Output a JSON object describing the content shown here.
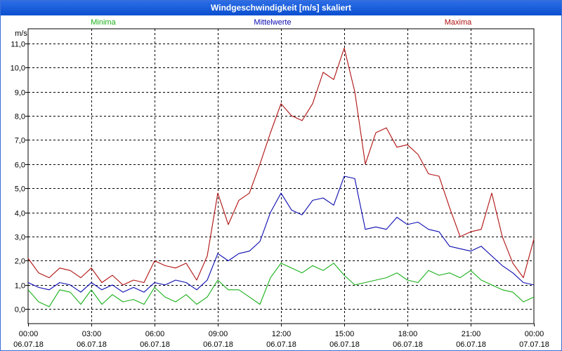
{
  "window": {
    "title": "Windgeschwindigkeit [m/s] skaliert"
  },
  "chart_data": {
    "type": "line",
    "title": "Windgeschwindigkeit [m/s] skaliert",
    "ylabel": "m/s",
    "xlabel": "",
    "ylim": [
      -0.6,
      11.6
    ],
    "xlim": [
      0,
      24
    ],
    "yticks": [
      0,
      1,
      2,
      3,
      4,
      5,
      6,
      7,
      8,
      9,
      10,
      11
    ],
    "ytick_labels": [
      "0,0",
      "1,0",
      "2,0",
      "3,0",
      "4,0",
      "5,0",
      "6,0",
      "7,0",
      "8,0",
      "9,0",
      "10,0",
      "11,0"
    ],
    "xticks": [
      {
        "value": 0,
        "time": "00:00",
        "date": "06.07.18"
      },
      {
        "value": 3,
        "time": "03:00",
        "date": "06.07.18"
      },
      {
        "value": 6,
        "time": "06:00",
        "date": "06.07.18"
      },
      {
        "value": 9,
        "time": "09:00",
        "date": "06.07.18"
      },
      {
        "value": 12,
        "time": "12:00",
        "date": "06.07.18"
      },
      {
        "value": 15,
        "time": "15:00",
        "date": "06.07.18"
      },
      {
        "value": 18,
        "time": "18:00",
        "date": "06.07.18"
      },
      {
        "value": 21,
        "time": "21:00",
        "date": "06.07.18"
      },
      {
        "value": 24,
        "time": "00:00",
        "date": "07.07.18"
      }
    ],
    "grid": true,
    "series": [
      {
        "name": "Minima",
        "color": "#18b018",
        "x": [
          0,
          0.5,
          1,
          1.5,
          2,
          2.5,
          3,
          3.5,
          4,
          4.5,
          5,
          5.5,
          6,
          6.5,
          7,
          7.5,
          8,
          8.5,
          9,
          9.5,
          10,
          10.5,
          11,
          11.5,
          12,
          12.5,
          13,
          13.5,
          14,
          14.5,
          15,
          15.5,
          16,
          16.5,
          17,
          17.5,
          18,
          18.5,
          19,
          19.5,
          20,
          20.5,
          21,
          21.5,
          22,
          22.5,
          23,
          23.5,
          24
        ],
        "values": [
          0.8,
          0.3,
          0.1,
          0.8,
          0.7,
          0.2,
          0.8,
          0.2,
          0.6,
          0.3,
          0.4,
          0.2,
          0.9,
          0.5,
          0.3,
          0.6,
          0.2,
          0.5,
          1.2,
          0.8,
          0.8,
          0.5,
          0.2,
          1.3,
          1.9,
          1.7,
          1.5,
          1.8,
          1.6,
          1.9,
          1.4,
          1.0,
          1.1,
          1.2,
          1.3,
          1.5,
          1.2,
          1.1,
          1.6,
          1.4,
          1.5,
          1.3,
          1.6,
          1.2,
          1.0,
          0.8,
          0.7,
          0.3,
          0.5
        ]
      },
      {
        "name": "Mittelwerte",
        "color": "#0a0ab0",
        "x": [
          0,
          0.5,
          1,
          1.5,
          2,
          2.5,
          3,
          3.5,
          4,
          4.5,
          5,
          5.5,
          6,
          6.5,
          7,
          7.5,
          8,
          8.5,
          9,
          9.5,
          10,
          10.5,
          11,
          11.5,
          12,
          12.5,
          13,
          13.5,
          14,
          14.5,
          15,
          15.5,
          16,
          16.5,
          17,
          17.5,
          18,
          18.5,
          19,
          19.5,
          20,
          20.5,
          21,
          21.5,
          22,
          22.5,
          23,
          23.5,
          24
        ],
        "values": [
          1.1,
          0.9,
          0.8,
          1.1,
          1.0,
          0.7,
          1.1,
          0.8,
          1.0,
          0.7,
          0.9,
          0.7,
          1.1,
          1.0,
          1.2,
          1.1,
          0.8,
          1.2,
          2.3,
          2.0,
          2.3,
          2.4,
          2.8,
          4.0,
          4.8,
          4.1,
          3.9,
          4.5,
          4.6,
          4.3,
          5.5,
          5.4,
          3.3,
          3.4,
          3.3,
          3.8,
          3.5,
          3.6,
          3.3,
          3.2,
          2.6,
          2.5,
          2.4,
          2.6,
          2.2,
          1.8,
          1.5,
          1.1,
          1.0
        ]
      },
      {
        "name": "Maxima",
        "color": "#b01010",
        "x": [
          0,
          0.5,
          1,
          1.5,
          2,
          2.5,
          3,
          3.5,
          4,
          4.5,
          5,
          5.5,
          6,
          6.5,
          7,
          7.5,
          8,
          8.5,
          9,
          9.5,
          10,
          10.5,
          11,
          11.5,
          12,
          12.5,
          13,
          13.5,
          14,
          14.5,
          15,
          15.5,
          16,
          16.5,
          17,
          17.5,
          18,
          18.5,
          19,
          19.5,
          20,
          20.5,
          21,
          21.5,
          22,
          22.5,
          23,
          23.5,
          24
        ],
        "values": [
          2.1,
          1.5,
          1.3,
          1.7,
          1.6,
          1.3,
          1.7,
          1.1,
          1.4,
          1.0,
          1.2,
          1.1,
          2.0,
          1.8,
          1.7,
          1.9,
          1.2,
          2.2,
          4.8,
          3.5,
          4.5,
          4.8,
          6.0,
          7.3,
          8.5,
          8.0,
          7.8,
          8.5,
          9.8,
          9.5,
          10.8,
          9.0,
          6.0,
          7.3,
          7.5,
          6.7,
          6.8,
          6.4,
          5.6,
          5.5,
          4.2,
          3.0,
          3.2,
          3.3,
          4.8,
          3.0,
          1.9,
          1.3,
          2.9
        ]
      }
    ]
  }
}
